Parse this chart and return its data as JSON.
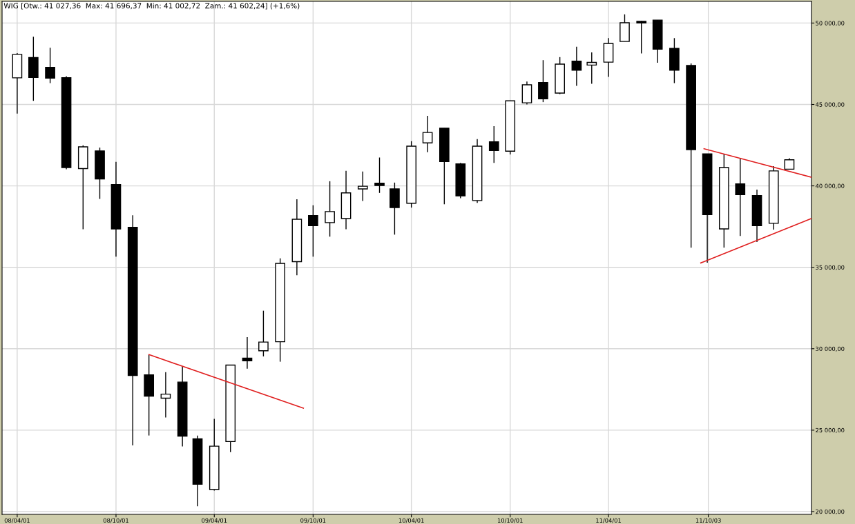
{
  "chart_data": {
    "type": "candlestick",
    "title": "WIG [Otw.: 41 027,36  Max: 41 696,37  Min: 41 002,72  Zam.: 41 602,24] (+1,6%)",
    "x": [
      "2008-04-01",
      "2008-05-01",
      "2008-06-01",
      "2008-07-01",
      "2008-08-01",
      "2008-09-01",
      "2008-10-01",
      "2008-11-01",
      "2008-12-01",
      "2009-01-01",
      "2009-02-01",
      "2009-03-01",
      "2009-04-01",
      "2009-05-01",
      "2009-06-01",
      "2009-07-01",
      "2009-08-01",
      "2009-09-01",
      "2009-10-01",
      "2009-11-01",
      "2009-12-01",
      "2010-01-01",
      "2010-02-01",
      "2010-03-01",
      "2010-04-01",
      "2010-05-01",
      "2010-06-01",
      "2010-07-01",
      "2010-08-01",
      "2010-09-01",
      "2010-10-01",
      "2010-11-01",
      "2010-12-01",
      "2011-01-01",
      "2011-02-01",
      "2011-03-01",
      "2011-04-01",
      "2011-05-01",
      "2011-06-01",
      "2011-07-01",
      "2011-08-01",
      "2011-09-01",
      "2011-10-01",
      "2011-11-01",
      "2011-12-01",
      "2012-01-01",
      "2012-02-01",
      "2012-03-01"
    ],
    "ohlc": [
      [
        46635,
        48157,
        44437,
        48073
      ],
      [
        47887,
        49159,
        45224,
        46656
      ],
      [
        47274,
        48483,
        46310,
        46618
      ],
      [
        46640,
        46741,
        41022,
        41128
      ],
      [
        41064,
        42497,
        37336,
        42396
      ],
      [
        42150,
        42353,
        39200,
        40430
      ],
      [
        40079,
        41474,
        35653,
        37357
      ],
      [
        37459,
        38194,
        24059,
        28362
      ],
      [
        28400,
        29630,
        24672,
        27090
      ],
      [
        26967,
        28565,
        25779,
        27212
      ],
      [
        27952,
        28937,
        23996,
        24634
      ],
      [
        24469,
        24672,
        20330,
        21683
      ],
      [
        21354,
        25699,
        21291,
        24017
      ],
      [
        24304,
        28996,
        23648,
        28996
      ],
      [
        29427,
        30716,
        28772,
        29262
      ],
      [
        29876,
        32335,
        29529,
        30408
      ],
      [
        30429,
        35552,
        29203,
        35244
      ],
      [
        35349,
        39179,
        34508,
        37949
      ],
      [
        38177,
        38811,
        35653,
        37560
      ],
      [
        37746,
        40286,
        36883,
        38423
      ],
      [
        37991,
        40920,
        37336,
        39568
      ],
      [
        39813,
        40878,
        39078,
        39978
      ],
      [
        40164,
        41741,
        39568,
        40020
      ],
      [
        39813,
        40202,
        37006,
        38667
      ],
      [
        38934,
        42746,
        38667,
        42438
      ],
      [
        42641,
        44302,
        42070,
        43279
      ],
      [
        43545,
        43545,
        38870,
        41495
      ],
      [
        41352,
        41415,
        39242,
        39386
      ],
      [
        39099,
        42869,
        38955,
        42438
      ],
      [
        42704,
        43668,
        41415,
        42172
      ],
      [
        42129,
        45224,
        41926,
        45224
      ],
      [
        45101,
        46411,
        45000,
        46208
      ],
      [
        46352,
        47722,
        45143,
        45346
      ],
      [
        45697,
        47908,
        45634,
        47477
      ],
      [
        47662,
        48542,
        46145,
        47109
      ],
      [
        47417,
        48195,
        46268,
        47582
      ],
      [
        47599,
        49074,
        46699,
        48749
      ],
      [
        48871,
        50533,
        48871,
        50017
      ],
      [
        50101,
        50139,
        48132,
        50000
      ],
      [
        50182,
        50182,
        47561,
        48398
      ],
      [
        48440,
        49074,
        46310,
        47109
      ],
      [
        47396,
        47519,
        36208,
        42222
      ],
      [
        41964,
        41964,
        35286,
        38236
      ],
      [
        37357,
        41964,
        36208,
        41128
      ],
      [
        40122,
        41719,
        36926,
        39466
      ],
      [
        39403,
        39775,
        36558,
        37560
      ],
      [
        37704,
        41208,
        37315,
        40920
      ],
      [
        41027.36,
        41696.37,
        41002.72,
        41602.24
      ]
    ],
    "series": [
      {
        "type": "line",
        "color": "#e02020",
        "x": [
          "2008-12-01",
          "2009-09-13"
        ],
        "values": [
          29640,
          26350
        ]
      },
      {
        "type": "line",
        "color": "#e02020",
        "x": [
          "2011-09-25",
          "2012-04-11"
        ],
        "values": [
          42280,
          40530
        ]
      },
      {
        "type": "line",
        "color": "#e02020",
        "x": [
          "2011-09-19",
          "2012-04-11"
        ],
        "values": [
          35270,
          38000
        ]
      }
    ],
    "xlim": [
      "2008-03-04",
      "2012-04-11"
    ],
    "xticks": [
      {
        "value": "2008-04-01",
        "label": "08/04/01"
      },
      {
        "value": "2008-10-01",
        "label": "08/10/01"
      },
      {
        "value": "2009-04-01",
        "label": "09/04/01"
      },
      {
        "value": "2009-10-01",
        "label": "09/10/01"
      },
      {
        "value": "2010-04-01",
        "label": "10/04/01"
      },
      {
        "value": "2010-10-01",
        "label": "10/10/01"
      },
      {
        "value": "2011-04-01",
        "label": "11/04/01"
      },
      {
        "value": "2011-10-03",
        "label": "11/10/03"
      }
    ],
    "ylim": [
      19830,
      51330
    ],
    "yticks": [
      {
        "value": 20000,
        "label": "20 000,00"
      },
      {
        "value": 25000,
        "label": "25 000,00"
      },
      {
        "value": 30000,
        "label": "30 000,00"
      },
      {
        "value": 35000,
        "label": "35 000,00"
      },
      {
        "value": 40000,
        "label": "40 000,00"
      },
      {
        "value": 45000,
        "label": "45 000,00"
      },
      {
        "value": 50000,
        "label": "50 000,00"
      }
    ],
    "grid": true
  }
}
